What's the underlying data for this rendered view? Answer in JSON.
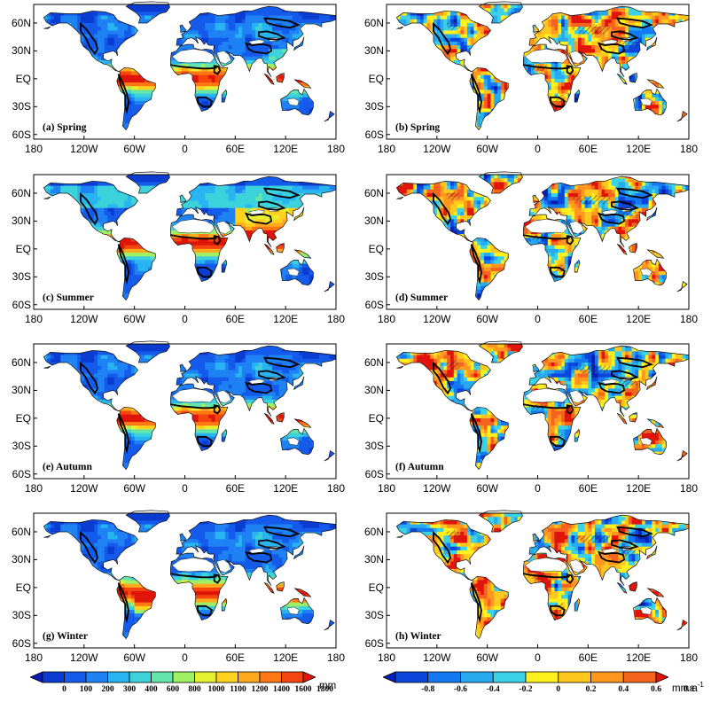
{
  "lat_labels": [
    "60N",
    "30N",
    "EQ",
    "30S",
    "60S"
  ],
  "lon_labels": [
    "180",
    "120W",
    "60W",
    "0",
    "60E",
    "120E",
    "180"
  ],
  "panels": [
    {
      "id": "a",
      "label": "(a) Spring",
      "kind": "abs",
      "season": "spring"
    },
    {
      "id": "b",
      "label": "(b) Spring",
      "kind": "trend",
      "season": "spring"
    },
    {
      "id": "c",
      "label": "(c) Summer",
      "kind": "abs",
      "season": "summer"
    },
    {
      "id": "d",
      "label": "(d) Summer",
      "kind": "trend",
      "season": "summer"
    },
    {
      "id": "e",
      "label": "(e) Autumn",
      "kind": "abs",
      "season": "autumn"
    },
    {
      "id": "f",
      "label": "(f) Autumn",
      "kind": "trend",
      "season": "autumn"
    },
    {
      "id": "g",
      "label": "(g) Winter",
      "kind": "abs",
      "season": "winter"
    },
    {
      "id": "h",
      "label": "(h) Winter",
      "kind": "trend",
      "season": "winter"
    }
  ],
  "colorbar_abs": {
    "ticks": [
      "0",
      "100",
      "200",
      "300",
      "400",
      "600",
      "800",
      "1000",
      "1100",
      "1200",
      "1400",
      "1600",
      "1800"
    ],
    "unit": "mm",
    "colors": [
      "#0a1eb4",
      "#0a3cd2",
      "#145aeb",
      "#1e82f5",
      "#28b4f0",
      "#3cd2dc",
      "#64e6aa",
      "#a0f064",
      "#e6f032",
      "#ffd21e",
      "#ffaa1e",
      "#ff7814",
      "#f5460f",
      "#e1140a"
    ]
  },
  "colorbar_trend": {
    "ticks": [
      "-0.8",
      "-0.6",
      "-0.4",
      "-0.2",
      "0",
      "0.2",
      "0.4",
      "0.6",
      "0.8"
    ],
    "unit": "mm a",
    "unit_exp": "-1",
    "colors": [
      "#0a1eb4",
      "#0a46dc",
      "#1478f0",
      "#28aaf0",
      "#3cd2e6",
      "#fff01e",
      "#ffc81e",
      "#ff961e",
      "#f5641e",
      "#e1140a"
    ]
  }
}
